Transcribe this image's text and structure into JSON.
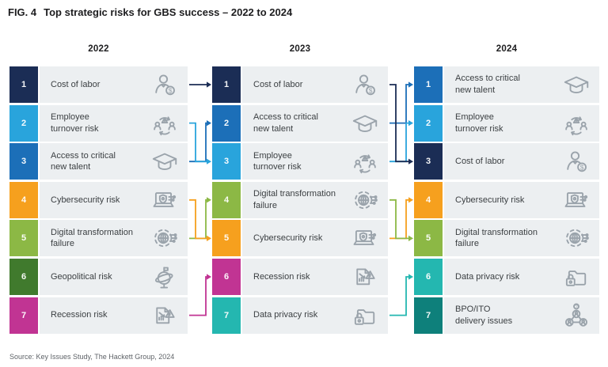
{
  "figure": {
    "label": "FIG. 4",
    "title": "Top strategic risks for GBS success – 2022 to 2024"
  },
  "source": "Source: Key Issues Study, The Hackett Group, 2024",
  "columns": [
    {
      "year": "2022",
      "items": [
        {
          "rank": "1",
          "label": "Cost of labor",
          "color": "#1B2D55",
          "icon": "cost-of-labor-icon"
        },
        {
          "rank": "2",
          "label": "Employee\nturnover risk",
          "color": "#29A4DC",
          "icon": "employee-turnover-icon"
        },
        {
          "rank": "3",
          "label": "Access to critical\nnew talent",
          "color": "#1C6FB8",
          "icon": "graduation-cap-icon"
        },
        {
          "rank": "4",
          "label": "Cybersecurity risk",
          "color": "#F6A01E",
          "icon": "cybersecurity-icon"
        },
        {
          "rank": "5",
          "label": "Digital transformation\nfailure",
          "color": "#8CB845",
          "icon": "digital-transformation-icon"
        },
        {
          "rank": "6",
          "label": "Geopolitical risk",
          "color": "#407A2D",
          "icon": "geopolitical-globe-icon"
        },
        {
          "rank": "7",
          "label": "Recession risk",
          "color": "#C13493",
          "icon": "recession-chart-icon"
        }
      ]
    },
    {
      "year": "2023",
      "items": [
        {
          "rank": "1",
          "label": "Cost of labor",
          "color": "#1B2D55",
          "icon": "cost-of-labor-icon"
        },
        {
          "rank": "2",
          "label": "Access to critical\nnew talent",
          "color": "#1C6FB8",
          "icon": "graduation-cap-icon"
        },
        {
          "rank": "3",
          "label": "Employee\nturnover risk",
          "color": "#29A4DC",
          "icon": "employee-turnover-icon"
        },
        {
          "rank": "4",
          "label": "Digital transformation\nfailure",
          "color": "#8CB845",
          "icon": "digital-transformation-icon"
        },
        {
          "rank": "5",
          "label": "Cybersecurity risk",
          "color": "#F6A01E",
          "icon": "cybersecurity-icon"
        },
        {
          "rank": "6",
          "label": "Recession risk",
          "color": "#C13493",
          "icon": "recession-chart-icon"
        },
        {
          "rank": "7",
          "label": "Data privacy risk",
          "color": "#24B7B0",
          "icon": "data-privacy-lock-icon"
        }
      ]
    },
    {
      "year": "2024",
      "items": [
        {
          "rank": "1",
          "label": "Access to critical\nnew talent",
          "color": "#1C6FB8",
          "icon": "graduation-cap-icon"
        },
        {
          "rank": "2",
          "label": "Employee\nturnover risk",
          "color": "#29A4DC",
          "icon": "employee-turnover-icon"
        },
        {
          "rank": "3",
          "label": "Cost of labor",
          "color": "#1B2D55",
          "icon": "cost-of-labor-icon"
        },
        {
          "rank": "4",
          "label": "Cybersecurity risk",
          "color": "#F6A01E",
          "icon": "cybersecurity-icon"
        },
        {
          "rank": "5",
          "label": "Digital transformation\nfailure",
          "color": "#8CB845",
          "icon": "digital-transformation-icon"
        },
        {
          "rank": "6",
          "label": "Data privacy risk",
          "color": "#24B7B0",
          "icon": "data-privacy-lock-icon"
        },
        {
          "rank": "7",
          "label": "BPO/ITO\ndelivery issues",
          "color": "#0E807B",
          "icon": "bpo-network-icon"
        }
      ]
    }
  ],
  "transitions": [
    {
      "from_year": "2022",
      "from_rank": 1,
      "to_year": "2023",
      "to_rank": 1,
      "risk": "Cost of labor",
      "color": "#1B2D55"
    },
    {
      "from_year": "2022",
      "from_rank": 3,
      "to_year": "2023",
      "to_rank": 2,
      "risk": "Access to critical new talent",
      "color": "#1C6FB8"
    },
    {
      "from_year": "2022",
      "from_rank": 2,
      "to_year": "2023",
      "to_rank": 3,
      "risk": "Employee turnover risk",
      "color": "#29A4DC"
    },
    {
      "from_year": "2022",
      "from_rank": 5,
      "to_year": "2023",
      "to_rank": 4,
      "risk": "Digital transformation failure",
      "color": "#8CB845"
    },
    {
      "from_year": "2022",
      "from_rank": 4,
      "to_year": "2023",
      "to_rank": 5,
      "risk": "Cybersecurity risk",
      "color": "#F6A01E"
    },
    {
      "from_year": "2022",
      "from_rank": 7,
      "to_year": "2023",
      "to_rank": 6,
      "risk": "Recession risk",
      "color": "#C13493"
    },
    {
      "from_year": "2023",
      "from_rank": 2,
      "to_year": "2024",
      "to_rank": 1,
      "risk": "Access to critical new talent",
      "color": "#1C6FB8"
    },
    {
      "from_year": "2023",
      "from_rank": 3,
      "to_year": "2024",
      "to_rank": 2,
      "risk": "Employee turnover risk",
      "color": "#29A4DC"
    },
    {
      "from_year": "2023",
      "from_rank": 1,
      "to_year": "2024",
      "to_rank": 3,
      "risk": "Cost of labor",
      "color": "#1B2D55"
    },
    {
      "from_year": "2023",
      "from_rank": 5,
      "to_year": "2024",
      "to_rank": 4,
      "risk": "Cybersecurity risk",
      "color": "#F6A01E"
    },
    {
      "from_year": "2023",
      "from_rank": 4,
      "to_year": "2024",
      "to_rank": 5,
      "risk": "Digital transformation failure",
      "color": "#8CB845"
    },
    {
      "from_year": "2023",
      "from_rank": 7,
      "to_year": "2024",
      "to_rank": 6,
      "risk": "Data privacy risk",
      "color": "#24B7B0"
    }
  ]
}
